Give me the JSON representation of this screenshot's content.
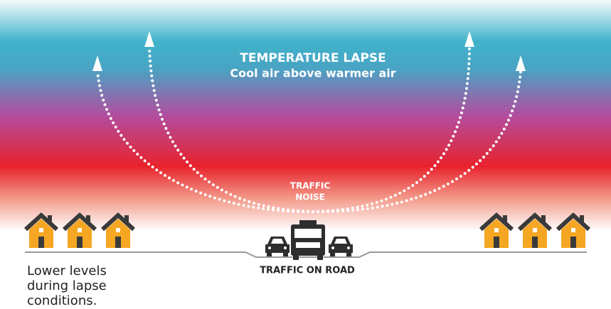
{
  "header": {
    "title": "TEMPERATURE LAPSE",
    "subtitle": "Cool air above warmer air"
  },
  "labels": {
    "noise": [
      "TRAFFIC",
      "NOISE"
    ],
    "road": "TRAFFIC ON ROAD",
    "houses_note": [
      "Lower levels",
      "during lapse",
      "conditions."
    ]
  }
}
